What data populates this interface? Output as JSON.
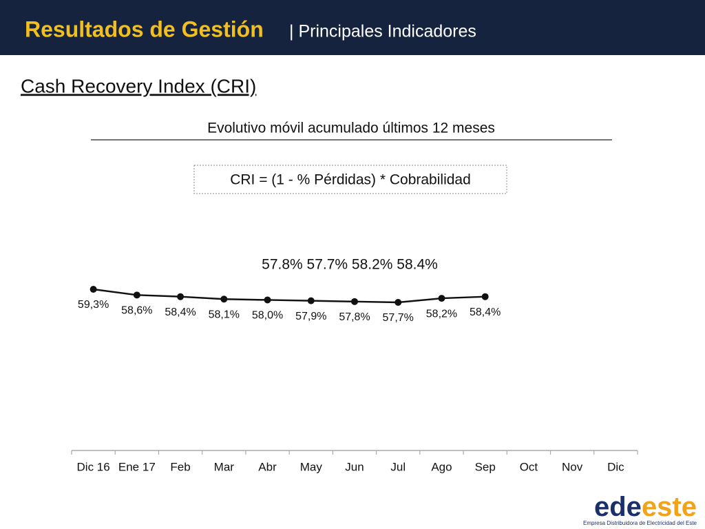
{
  "header": {
    "title": "Resultados de Gestión",
    "subtitle": "| Principales Indicadores"
  },
  "section_title": "Cash Recovery Index (CRI)",
  "chart_data": {
    "type": "line",
    "title": "Evolutivo móvil acumulado últimos 12 meses",
    "formula": "CRI = (1 - % Pérdidas) * Cobrabilidad",
    "annotation": "57.8% 57.7% 58.2% 58.4%",
    "categories": [
      "Dic 16",
      "Ene 17",
      "Feb",
      "Mar",
      "Abr",
      "May",
      "Jun",
      "Jul",
      "Ago",
      "Sep",
      "Oct",
      "Nov",
      "Dic"
    ],
    "values": [
      59.3,
      58.6,
      58.4,
      58.1,
      58.0,
      57.9,
      57.8,
      57.7,
      58.2,
      58.4,
      null,
      null,
      null
    ],
    "value_labels": [
      "59,3%",
      "58,6%",
      "58,4%",
      "58,1%",
      "58,0%",
      "57,9%",
      "57,8%",
      "57,7%",
      "58,2%",
      "58,4%",
      null,
      null,
      null
    ],
    "color": "#111111"
  },
  "logo": {
    "part1": "ede",
    "part2": "este",
    "tagline": "Empresa Distribuidora de Electricidad del Este"
  }
}
